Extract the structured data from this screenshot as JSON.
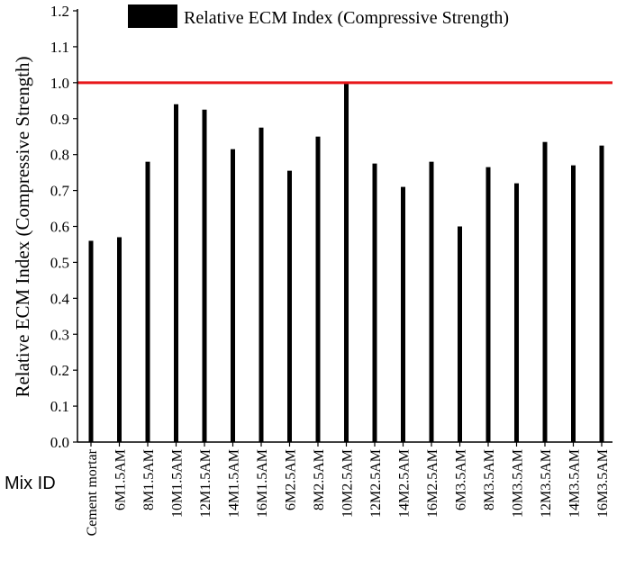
{
  "chart_data": {
    "type": "bar",
    "categories": [
      "Cement mortar",
      "6M1.5AM",
      "8M1.5AM",
      "10M1.5AM",
      "12M1.5AM",
      "14M1.5AM",
      "16M1.5AM",
      "6M2.5AM",
      "8M2.5AM",
      "10M2.5AM",
      "12M2.5AM",
      "14M2.5AM",
      "16M2.5AM",
      "6M3.5AM",
      "8M3.5AM",
      "10M3.5AM",
      "12M3.5AM",
      "14M3.5AM",
      "16M3.5AM"
    ],
    "series": [
      {
        "name": "Relative ECM Index (Compressive Strength)",
        "values": [
          0.56,
          0.57,
          0.78,
          0.94,
          0.925,
          0.815,
          0.875,
          0.755,
          0.85,
          1.0,
          0.775,
          0.71,
          0.78,
          0.6,
          0.765,
          0.72,
          0.835,
          0.77,
          0.825
        ],
        "color": "#000000"
      }
    ],
    "reference_line": {
      "y": 1.0,
      "color": "#e8171a"
    },
    "xlabel": "Mix ID",
    "ylabel": "Relative ECM Index (Compressive Strength)",
    "ylim": [
      0.0,
      1.2
    ],
    "yticks": [
      "0.0",
      "0.1",
      "0.2",
      "0.3",
      "0.4",
      "0.5",
      "0.6",
      "0.7",
      "0.8",
      "0.9",
      "1.0",
      "1.1",
      "1.2"
    ],
    "legend_position": "top",
    "grid": false
  }
}
